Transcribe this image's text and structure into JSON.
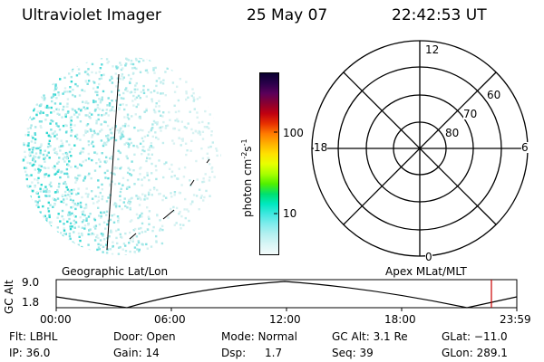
{
  "header": {
    "title": "Ultraviolet Imager",
    "date": "25 May 07",
    "time": "22:42:53 UT"
  },
  "colorbar": {
    "unit_label": "photon cm",
    "unit_exp1": "-2",
    "unit_s": "s",
    "unit_exp2": "-1",
    "ticks": [
      "100",
      "10"
    ],
    "colors": [
      "#0a0030",
      "#2a004a",
      "#5a005a",
      "#8a0030",
      "#c00010",
      "#e83000",
      "#ff7a00",
      "#ffb000",
      "#ffe000",
      "#e8ff00",
      "#a8ff00",
      "#50f000",
      "#00e070",
      "#00e8c0",
      "#40e8e0",
      "#80ecec",
      "#b4f0f0",
      "#d8f6f6",
      "#f4fbfb"
    ]
  },
  "polar": {
    "mlt_labels": {
      "top": "12",
      "left": "18",
      "right": "6",
      "bottom": "0"
    },
    "lat_labels": [
      "60",
      "70",
      "80"
    ]
  },
  "timeline": {
    "ylabel": "GC Alt",
    "y_ticks": [
      "9.0",
      "1.8"
    ],
    "left_title": "Geographic Lat/Lon",
    "right_title": "Apex MLat/MLT",
    "x_ticks": [
      "00:00",
      "06:00",
      "12:00",
      "18:00",
      "23:59"
    ],
    "marker_color": "#cc0000"
  },
  "info": {
    "row1": {
      "flt": "Flt: LBHL",
      "door": "Door: Open",
      "mode": "Mode: Normal",
      "gcalt": "GC Alt: 3.1 Re",
      "glat": "GLat: −11.0"
    },
    "row2": {
      "ip": "IP: 36.0",
      "gain": "Gain: 14",
      "dsp_label": "Dsp:",
      "dsp_value": "1.7",
      "seq": "Seq: 39",
      "glon": "GLon: 289.1"
    }
  }
}
